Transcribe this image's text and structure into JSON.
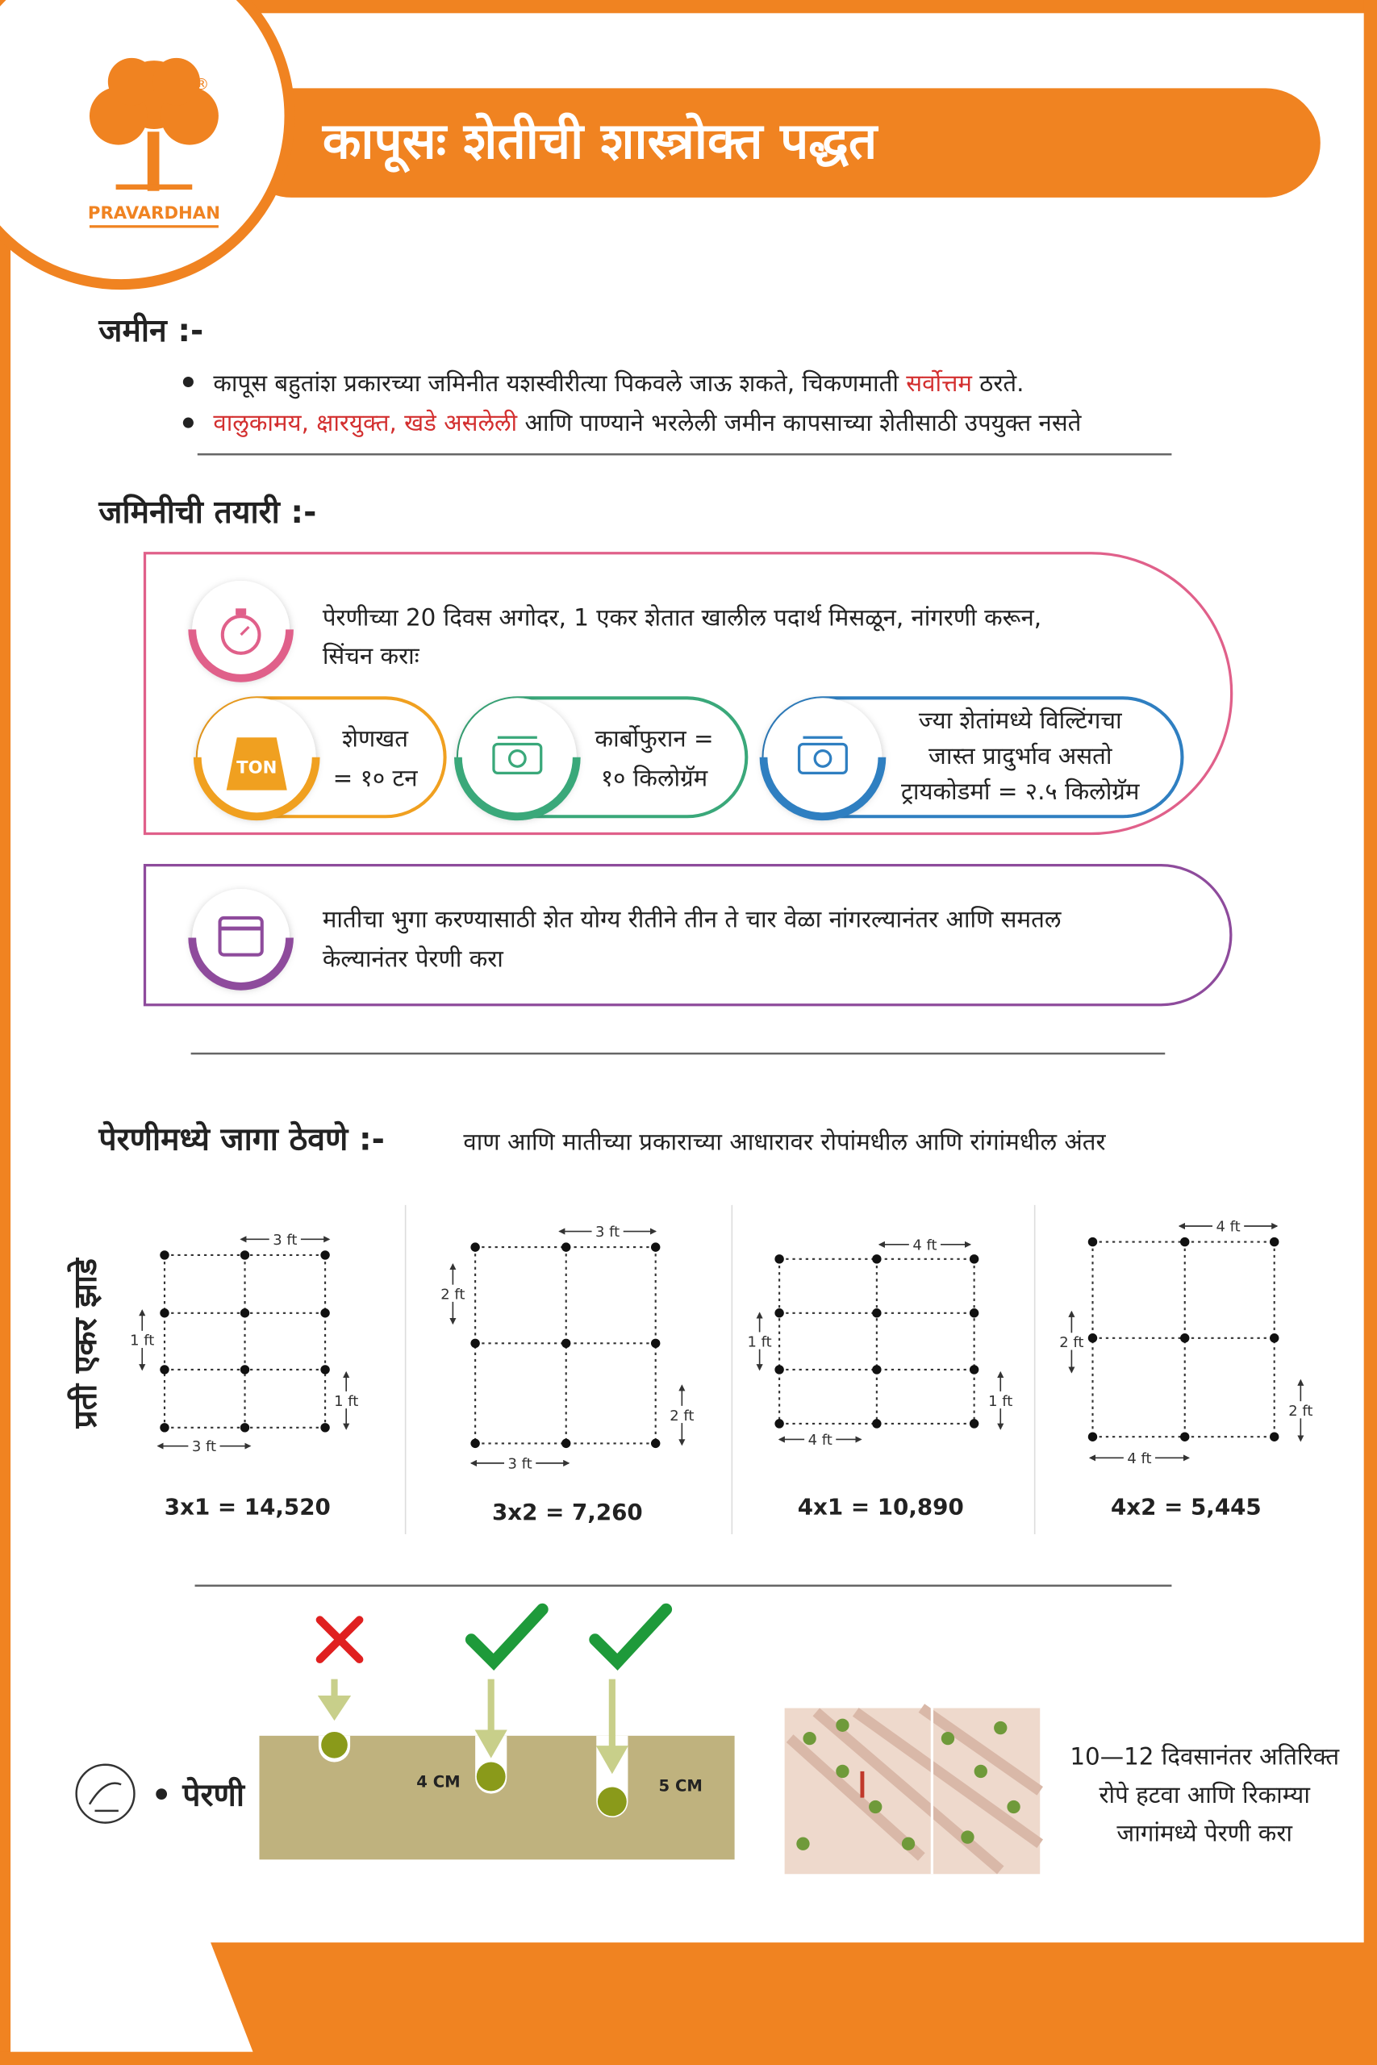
{
  "header": {
    "brand": "PRAVARDHAN",
    "registered": "®",
    "title": "कापूसः शेतीची शास्त्रोक्त पद्धत"
  },
  "soil": {
    "heading": "जमीन :-",
    "bullets": [
      [
        "कापूस बहुतांश प्रकारच्या जमिनीत यशस्वीरीत्या पिकवले जाऊ शकते, चिकणमाती ",
        "सर्वोत्तम",
        " ठरते."
      ],
      [
        "वालुकामय, क्षारयुक्त, खडे असलेली",
        " आणि पाण्याने भरलेली जमीन कापसाच्या शेतीसाठी उपयुक्त नसते"
      ]
    ]
  },
  "preparation": {
    "heading": "जमिनीची तयारी :-",
    "step1": [
      "पेरणीच्या 20 दिवस अगोदर, 1 एकर शेतात खालील पदार्थ मिसळून, नांगरणी करून,",
      "सिंचन कराः"
    ],
    "ton_icon": "TON",
    "items": [
      [
        "शेणखत",
        "= १० टन"
      ],
      [
        "कार्बोफुरान =",
        "१० किलोग्रॅम"
      ],
      [
        "ज्या शेतांमध्ये विल्टिंगचा",
        "जास्त प्रादुर्भाव असतो",
        "ट्रायकोडर्मा = २.५ किलोग्रॅम"
      ]
    ],
    "step2": [
      "मातीचा भुगा करण्यासाठी शेत योग्य रीतीने तीन ते चार वेळा नांगरल्यानंतर आणि समतल",
      "केल्यानंतर पेरणी करा"
    ]
  },
  "spacing": {
    "heading": "पेरणीमध्ये जागा ठेवणे :-",
    "subtitle": "वाण आणि मातीच्या प्रकाराच्या आधारावर रोपांमधील आणि रांगांमधील अंतर",
    "side_label": "प्रती एकर झाडे",
    "diagrams": [
      {
        "top": "3 ft",
        "bottom": "3 ft",
        "left": "1 ft",
        "right": "1 ft",
        "caption": "3x1 = 14,520"
      },
      {
        "top": "3 ft",
        "bottom": "3 ft",
        "left": "2 ft",
        "right": "2 ft",
        "caption": "3x2 = 7,260"
      },
      {
        "top": "4 ft",
        "bottom": "4 ft",
        "left": "1 ft",
        "right": "1 ft",
        "caption": "4x1 = 10,890"
      },
      {
        "top": "4 ft",
        "bottom": "4 ft",
        "left": "2 ft",
        "right": "2 ft",
        "caption": "4x2 = 5,445"
      }
    ]
  },
  "sowing": {
    "label": "• पेरणी",
    "depths": [
      "4 CM",
      "5 CM"
    ],
    "note": [
      "10—12 दिवसानंतर अतिरिक्त",
      "रोपे हटवा आणि रिकाम्या",
      "जागांमध्ये पेरणी करा"
    ]
  }
}
